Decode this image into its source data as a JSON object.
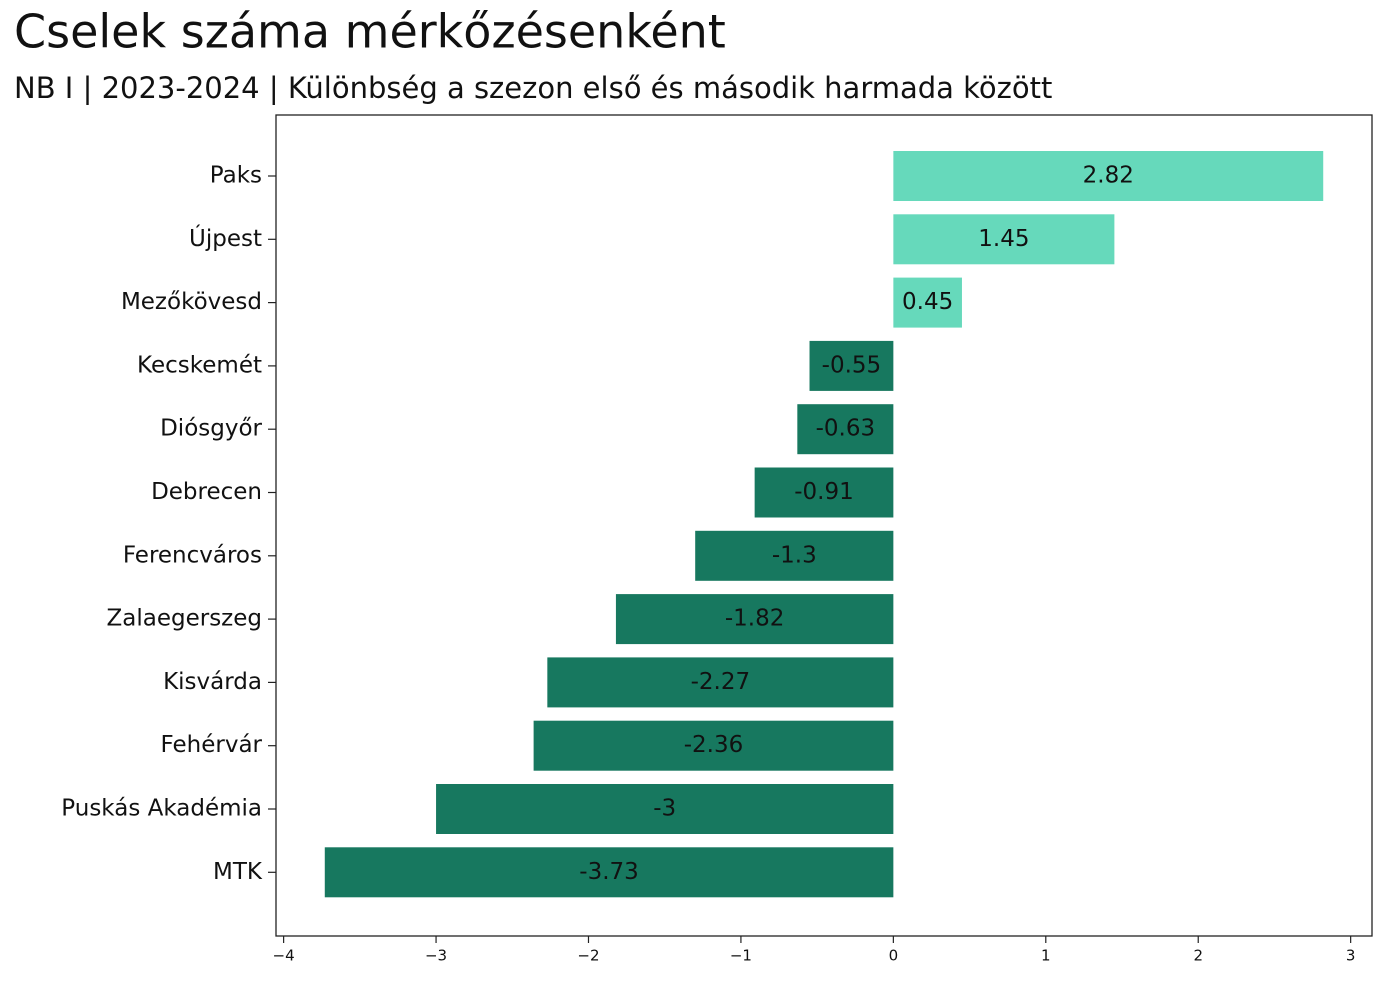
{
  "chart_data": {
    "type": "hbar",
    "title": "Cselek száma mérkőzésenként",
    "subtitle": "NB I | 2023-2024 | Különbség a szezon első és második harmada között",
    "categories": [
      "Paks",
      "Újpest",
      "Mezőkövesd",
      "Kecskemét",
      "Diósgyőr",
      "Debrecen",
      "Ferencváros",
      "Zalaegerszeg",
      "Kisvárda",
      "Fehérvár",
      "Puskás Akadémia",
      "MTK"
    ],
    "values": [
      2.82,
      1.45,
      0.45,
      -0.55,
      -0.63,
      -0.91,
      -1.3,
      -1.82,
      -2.27,
      -2.36,
      -3,
      -3.73
    ],
    "positive_color": "#66d9bb",
    "negative_color": "#17785f",
    "xlim": [
      -4.05,
      3.14
    ],
    "xticks": [
      {
        "value": -4,
        "label": "−4"
      },
      {
        "value": -3,
        "label": "−3"
      },
      {
        "value": -2,
        "label": "−2"
      },
      {
        "value": -1,
        "label": "−1"
      },
      0,
      1,
      2,
      3
    ],
    "grid": false
  }
}
